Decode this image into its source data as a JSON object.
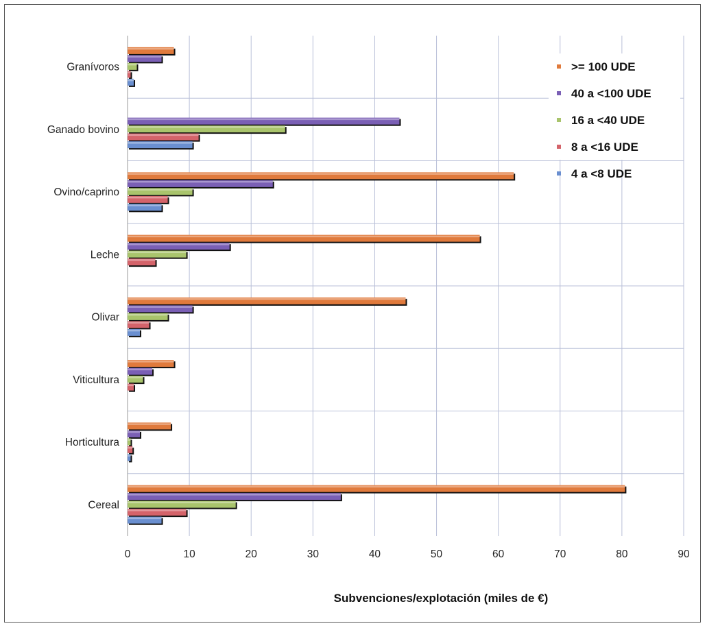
{
  "chart_data": {
    "type": "bar",
    "orientation": "horizontal",
    "categories": [
      "Granívoros",
      "Ganado bovino",
      "Ovino/caprino",
      "Leche",
      "Olivar",
      "Viticultura",
      "Horticultura",
      "Cereal"
    ],
    "series": [
      {
        "name": ">= 100 UDE",
        "color": "#e07a3c",
        "values": [
          7.5,
          null,
          62.5,
          57,
          45,
          7.5,
          7,
          80.5
        ]
      },
      {
        "name": "40 a <100 UDE",
        "color": "#7a5fb5",
        "values": [
          5.5,
          44,
          23.5,
          16.5,
          10.5,
          4,
          2,
          34.5
        ]
      },
      {
        "name": "16 a <40 UDE",
        "color": "#a9c46c",
        "values": [
          1.5,
          25.5,
          10.5,
          9.5,
          6.5,
          2.5,
          0.5,
          17.5
        ]
      },
      {
        "name": "8 a <16 UDE",
        "color": "#d4636a",
        "values": [
          0.5,
          11.5,
          6.5,
          4.5,
          3.5,
          1,
          0.8,
          9.5
        ]
      },
      {
        "name": "4 a <8 UDE",
        "color": "#6a8fd0",
        "values": [
          1,
          10.5,
          5.5,
          null,
          2,
          null,
          0.5,
          5.5
        ]
      }
    ],
    "xlim": [
      0,
      90
    ],
    "xticks": [
      "0",
      "10",
      "20",
      "30",
      "40",
      "50",
      "60",
      "70",
      "80",
      "90"
    ],
    "xlabel": "Subvenciones/explotación (miles de €)",
    "ylabel": "",
    "title": "",
    "grid": true,
    "legend_position": "top-right"
  }
}
